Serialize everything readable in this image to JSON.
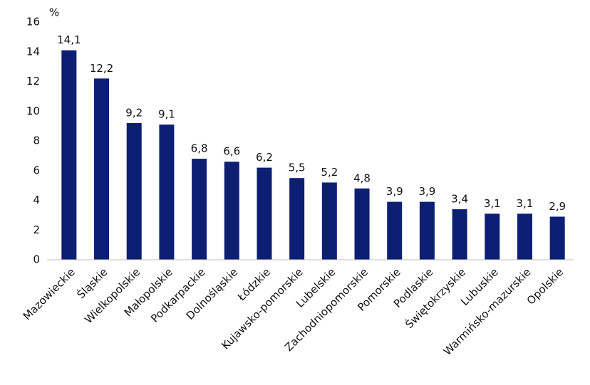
{
  "chart_data": {
    "type": "bar",
    "ylabel": "%",
    "categories": [
      "Mazowieckie",
      "Śląskie",
      "Wielkopolskie",
      "Małopolskie",
      "Podkarpackie",
      "Dolnośląskie",
      "Łódzkie",
      "Kujawsko-pomorskie",
      "Lubelskie",
      "Zachodniopomorskie",
      "Pomorskie",
      "Podlaskie",
      "Świętokrzyskie",
      "Lubuskie",
      "Warmińsko-mazurskie",
      "Opolskie"
    ],
    "values": [
      14.1,
      12.2,
      9.2,
      9.1,
      6.8,
      6.6,
      6.2,
      5.5,
      5.2,
      4.8,
      3.9,
      3.9,
      3.4,
      3.1,
      3.1,
      2.9
    ],
    "value_labels": [
      "14,1",
      "12,2",
      "9,2",
      "9,1",
      "6,8",
      "6,6",
      "6,2",
      "5,5",
      "5,2",
      "4,8",
      "3,9",
      "3,9",
      "3,4",
      "3,1",
      "3,1",
      "2,9"
    ],
    "color": "#0c1f73",
    "ylim": [
      0,
      16
    ],
    "yticks": [
      0,
      2,
      4,
      6,
      8,
      10,
      12,
      14,
      16
    ],
    "grid": false
  }
}
